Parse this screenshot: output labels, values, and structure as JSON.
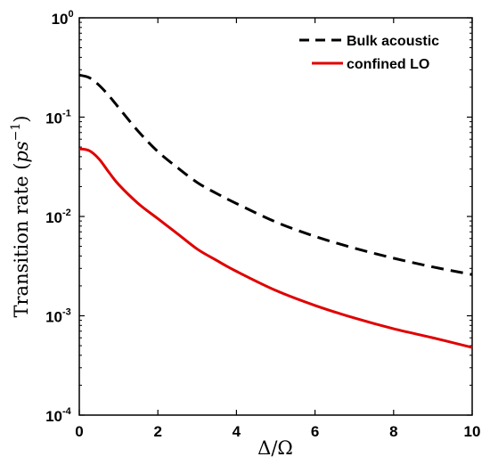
{
  "chart_data": {
    "type": "line",
    "xlabel": "Δ/Ω",
    "ylabel": "Transition rate (ps⁻¹)",
    "ylabel_parts": {
      "text": "Transition rate (",
      "var": "ps",
      "sup": "−1",
      "close": ")"
    },
    "x_ticks": [
      "0",
      "2",
      "4",
      "6",
      "8",
      "10"
    ],
    "y_ticks": [
      {
        "base": "10",
        "exp": "0"
      },
      {
        "base": "10",
        "exp": "-1"
      },
      {
        "base": "10",
        "exp": "-2"
      },
      {
        "base": "10",
        "exp": "-3"
      },
      {
        "base": "10",
        "exp": "-4"
      }
    ],
    "xlim": [
      0,
      10
    ],
    "ylim": [
      0.0001,
      1
    ],
    "yscale": "log",
    "grid": false,
    "legend_position": "top-right",
    "series": [
      {
        "name": "Bulk acoustic",
        "color": "#000000",
        "style": "dashed",
        "x": [
          0,
          0.25,
          0.5,
          0.75,
          1,
          1.5,
          2,
          2.5,
          3,
          3.5,
          4,
          5,
          6,
          7,
          8,
          9,
          10
        ],
        "y": [
          0.265,
          0.25,
          0.21,
          0.165,
          0.125,
          0.072,
          0.045,
          0.031,
          0.022,
          0.017,
          0.0135,
          0.0088,
          0.0063,
          0.0048,
          0.0038,
          0.0031,
          0.0026
        ]
      },
      {
        "name": "confined LO",
        "color": "#e00000",
        "style": "solid",
        "x": [
          0,
          0.25,
          0.5,
          0.75,
          1,
          1.5,
          2,
          2.5,
          3,
          3.5,
          4,
          5,
          6,
          7,
          8,
          9,
          10
        ],
        "y": [
          0.048,
          0.046,
          0.038,
          0.028,
          0.021,
          0.0135,
          0.0095,
          0.0067,
          0.0047,
          0.0036,
          0.0028,
          0.0018,
          0.00127,
          0.00095,
          0.00074,
          0.0006,
          0.00048
        ]
      }
    ]
  }
}
